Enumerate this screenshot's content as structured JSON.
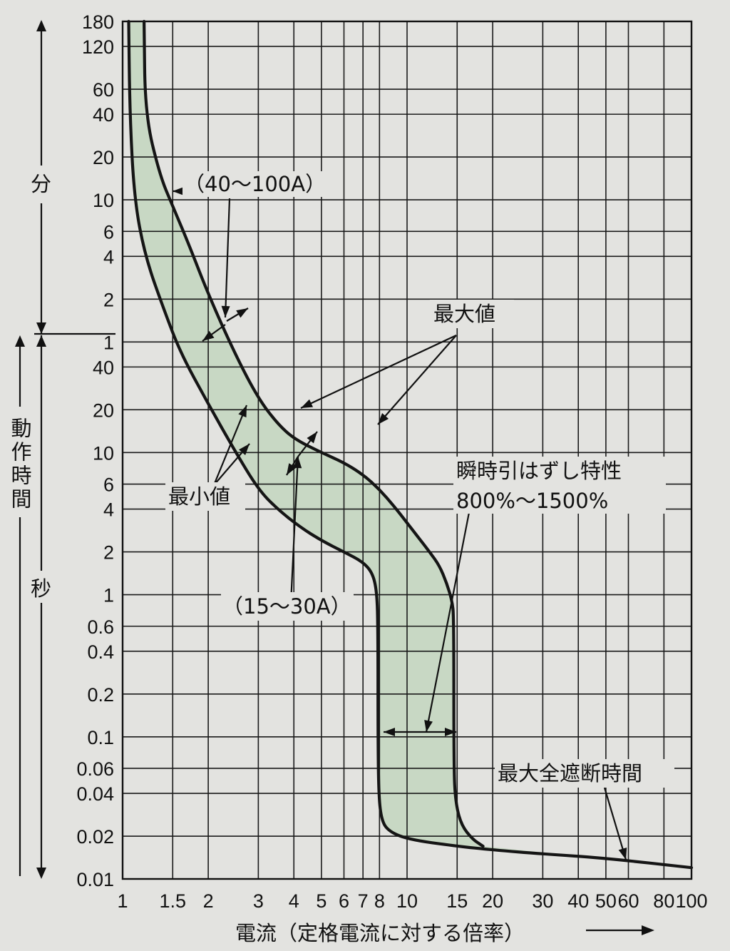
{
  "chart_data": {
    "type": "line",
    "title": "",
    "x_scale": "log",
    "xlim": [
      1,
      100
    ],
    "x_ticks": [
      "1",
      "1.5",
      "2",
      "3",
      "4",
      "5",
      "6",
      "7",
      "8",
      "10",
      "15",
      "20",
      "30",
      "40",
      "50",
      "60",
      "80",
      "100"
    ],
    "xlabel": "電流（定格電流に対する倍率）",
    "y_scale": "log",
    "ylim_seconds": [
      0.01,
      10800
    ],
    "y_ticks": [
      {
        "label": "0.01",
        "seconds": 0.01
      },
      {
        "label": "0.02",
        "seconds": 0.02
      },
      {
        "label": "0.04",
        "seconds": 0.04
      },
      {
        "label": "0.06",
        "seconds": 0.06
      },
      {
        "label": "0.1",
        "seconds": 0.1
      },
      {
        "label": "0.2",
        "seconds": 0.2
      },
      {
        "label": "0.4",
        "seconds": 0.4
      },
      {
        "label": "0.6",
        "seconds": 0.6
      },
      {
        "label": "1",
        "seconds": 1
      },
      {
        "label": "2",
        "seconds": 2
      },
      {
        "label": "4",
        "seconds": 4
      },
      {
        "label": "6",
        "seconds": 6
      },
      {
        "label": "10",
        "seconds": 10
      },
      {
        "label": "20",
        "seconds": 20
      },
      {
        "label": "40",
        "seconds": 40
      },
      {
        "label": "1",
        "seconds": 60
      },
      {
        "label": "2",
        "seconds": 120
      },
      {
        "label": "4",
        "seconds": 240
      },
      {
        "label": "6",
        "seconds": 360
      },
      {
        "label": "10",
        "seconds": 600
      },
      {
        "label": "20",
        "seconds": 1200
      },
      {
        "label": "40",
        "seconds": 2400
      },
      {
        "label": "60",
        "seconds": 3600
      },
      {
        "label": "120",
        "seconds": 7200
      },
      {
        "label": "180",
        "seconds": 10800
      }
    ],
    "ylabel": "動作時間",
    "ylabel_units": {
      "minutes": "分",
      "seconds": "秒"
    },
    "grid": true,
    "series": [
      {
        "x": [
          1.05,
          1.06,
          1.1,
          1.2,
          1.4,
          1.6,
          2.0,
          2.5,
          3.0,
          3.5,
          4.2,
          5.0,
          6.0,
          7.0,
          7.6,
          7.85,
          7.9,
          7.9,
          7.95,
          8.1,
          8.5,
          10,
          15,
          20,
          30,
          50,
          100
        ],
        "y": [
          10800,
          2400,
          600,
          240,
          100,
          50,
          22,
          10,
          5.5,
          4,
          3,
          2.4,
          2,
          1.7,
          1.4,
          1,
          0.5,
          0.1,
          0.04,
          0.027,
          0.022,
          0.019,
          0.017,
          0.016,
          0.015,
          0.014,
          0.012
        ]
      },
      {
        "x": [
          1.19,
          1.2,
          1.35,
          1.5,
          1.7,
          2.0,
          2.5,
          3.0,
          3.5,
          4.0,
          5.0,
          6.0,
          7.0,
          8.0,
          9.0,
          10.0,
          11.0,
          12.0,
          13.0,
          13.8,
          14.4,
          14.6,
          14.6,
          14.8,
          15.5,
          17.0,
          18.5
        ],
        "y": [
          10800,
          2400,
          900,
          540,
          300,
          130,
          48,
          24,
          16,
          12.5,
          10,
          8.5,
          7,
          5.5,
          4.2,
          3.2,
          2.5,
          2,
          1.6,
          1.2,
          0.9,
          0.7,
          0.06,
          0.035,
          0.024,
          0.019,
          0.017
        ]
      }
    ],
    "shaded_band": "between the two curves",
    "annotations": [
      {
        "text": "（40〜100A）"
      },
      {
        "text": "最大値"
      },
      {
        "text": "最小値"
      },
      {
        "text": "瞬時引はずし特性"
      },
      {
        "text": "800%〜1500%"
      },
      {
        "text": "（15〜30A）"
      },
      {
        "text": "最大全遮断時間"
      }
    ]
  }
}
